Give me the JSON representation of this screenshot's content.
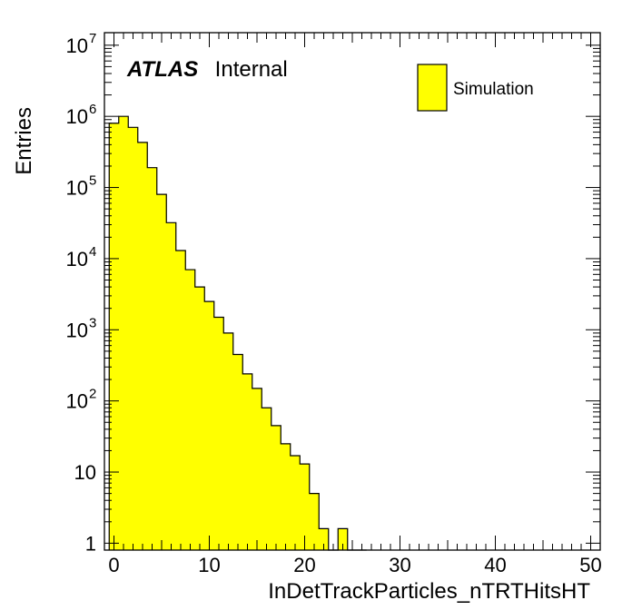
{
  "colors": {
    "fill": "#ffff00",
    "stroke": "#000000",
    "background": "#ffffff"
  },
  "chart_data": {
    "type": "histogram",
    "title": "",
    "xlabel": "InDetTrackParticles_nTRTHitsHT",
    "ylabel": "Entries",
    "xlim": [
      -1,
      51
    ],
    "ylim": [
      0.8,
      15000000
    ],
    "yscale": "log",
    "grid": false,
    "bin_width": 1,
    "x_ticks": [
      0,
      10,
      20,
      30,
      40,
      50
    ],
    "x_tick_labels": [
      "0",
      "10",
      "20",
      "30",
      "40",
      "50"
    ],
    "y_tick_labels": [
      {
        "value": 1,
        "base": "1",
        "exp": ""
      },
      {
        "value": 10,
        "base": "10",
        "exp": ""
      },
      {
        "value": 100,
        "base": "10",
        "exp": "2"
      },
      {
        "value": 1000,
        "base": "10",
        "exp": "3"
      },
      {
        "value": 10000,
        "base": "10",
        "exp": "4"
      },
      {
        "value": 100000,
        "base": "10",
        "exp": "5"
      },
      {
        "value": 1000000,
        "base": "10",
        "exp": "6"
      },
      {
        "value": 10000000,
        "base": "10",
        "exp": "7"
      }
    ],
    "annotation": {
      "atlas": "ATLAS",
      "status": "Internal"
    },
    "legend": {
      "placement": "top-right",
      "entries": [
        "Simulation"
      ]
    },
    "series": [
      {
        "name": "Simulation",
        "bin_edges": [
          -0.5,
          0.5,
          1.5,
          2.5,
          3.5,
          4.5,
          5.5,
          6.5,
          7.5,
          8.5,
          9.5,
          10.5,
          11.5,
          12.5,
          13.5,
          14.5,
          15.5,
          16.5,
          17.5,
          18.5,
          19.5,
          20.5,
          21.5,
          22.5,
          23.5,
          24.5,
          25.5,
          26.5
        ],
        "values": [
          800000,
          1000000,
          700000,
          430000,
          190000,
          80000,
          32000,
          13000,
          7000,
          4000,
          2500,
          1500,
          900,
          450,
          240,
          150,
          80,
          45,
          25,
          17,
          13,
          5,
          1.6,
          0.7,
          1.6,
          0.7,
          0
        ]
      }
    ]
  }
}
